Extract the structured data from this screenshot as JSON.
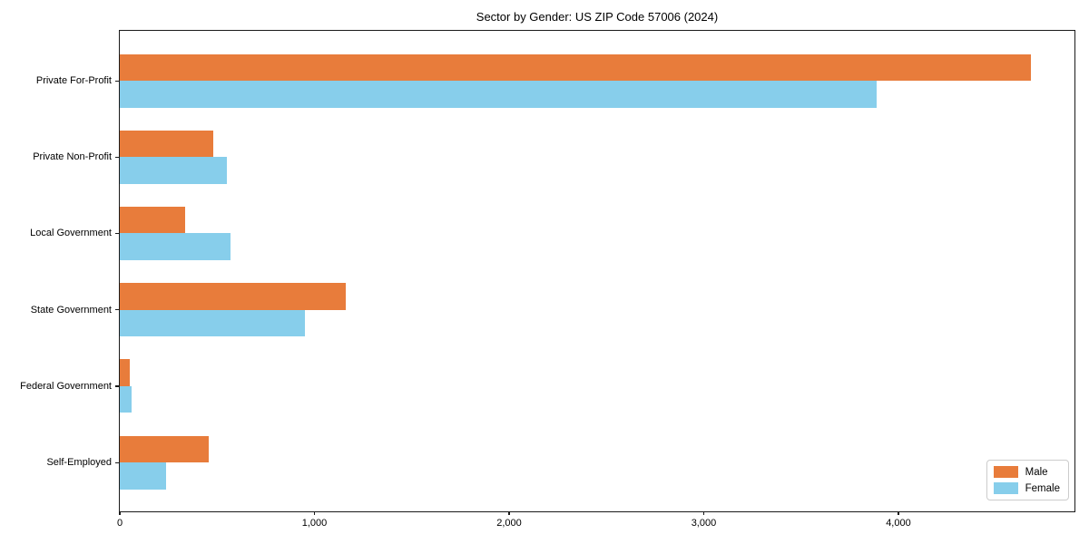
{
  "chart_data": {
    "type": "bar",
    "orientation": "horizontal",
    "title": "Sector by Gender: US ZIP Code 57006 (2024)",
    "xlabel": "",
    "ylabel": "",
    "categories": [
      "Private For-Profit",
      "Private Non-Profit",
      "Local Government",
      "State Government",
      "Federal Government",
      "Self-Employed"
    ],
    "series": [
      {
        "name": "Male",
        "color": "#e87c3b",
        "values": [
          4680,
          480,
          335,
          1160,
          50,
          455
        ]
      },
      {
        "name": "Female",
        "color": "#87ceeb",
        "values": [
          3890,
          550,
          570,
          950,
          60,
          240
        ]
      }
    ],
    "xlim": [
      0,
      4914
    ],
    "xticks": [
      {
        "value": 0,
        "label": "0"
      },
      {
        "value": 1000,
        "label": "1,000"
      },
      {
        "value": 2000,
        "label": "2,000"
      },
      {
        "value": 3000,
        "label": "3,000"
      },
      {
        "value": 4000,
        "label": "4,000"
      }
    ],
    "grid": false,
    "legend": {
      "position": "lower right",
      "entries": [
        {
          "label": "Male",
          "color": "#e87c3b"
        },
        {
          "label": "Female",
          "color": "#87ceeb"
        }
      ]
    }
  }
}
